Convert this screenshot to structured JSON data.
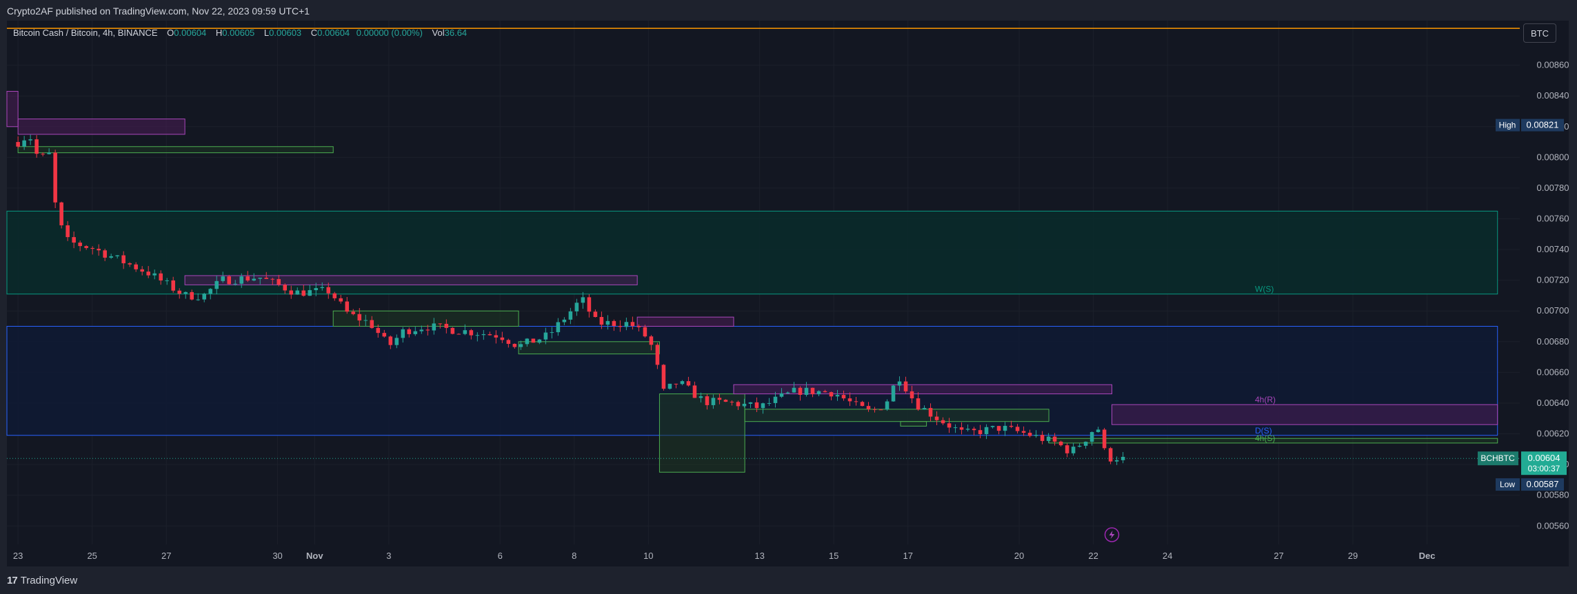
{
  "publish_text": "Crypto2AF published on TradingView.com, Nov 22, 2023 09:59 UTC+1",
  "legend": {
    "symbol": "Bitcoin Cash / Bitcoin, 4h, BINANCE",
    "open_label": "O",
    "open": "0.00604",
    "high_label": "H",
    "high": "0.00605",
    "low_label": "L",
    "low": "0.00603",
    "close_label": "C",
    "close": "0.00604",
    "change": "0.00000 (0.00%)",
    "vol_label": "Vol",
    "vol": "36.64"
  },
  "currency_button": "BTC",
  "footer_brand": "TradingView",
  "colors": {
    "background": "#131722",
    "up": "#26a69a",
    "down": "#f23645",
    "grid": "#1c202b",
    "purple": "#9c27b0",
    "green_zone": "#4caf50",
    "blue_line": "#2962ff",
    "teal_line": "#089981",
    "orange_line": "#ff9800",
    "last_price": "#22ab94"
  },
  "chart_data": {
    "type": "candlestick",
    "ylim": [
      0.00548,
      0.00889
    ],
    "yticks": [
      "0.00560",
      "0.00580",
      "0.00600",
      "0.00620",
      "0.00640",
      "0.00660",
      "0.00680",
      "0.00700",
      "0.00720",
      "0.00740",
      "0.00760",
      "0.00780",
      "0.00800",
      "0.00820",
      "0.00840",
      "0.00860"
    ],
    "x_ticks": [
      {
        "label": "23",
        "day": 0
      },
      {
        "label": "25",
        "day": 2
      },
      {
        "label": "27",
        "day": 4
      },
      {
        "label": "30",
        "day": 7
      },
      {
        "label": "Nov",
        "day": 8
      },
      {
        "label": "3",
        "day": 10
      },
      {
        "label": "6",
        "day": 13
      },
      {
        "label": "8",
        "day": 15
      },
      {
        "label": "10",
        "day": 17
      },
      {
        "label": "13",
        "day": 20
      },
      {
        "label": "15",
        "day": 22
      },
      {
        "label": "17",
        "day": 24
      },
      {
        "label": "20",
        "day": 27
      },
      {
        "label": "22",
        "day": 29
      },
      {
        "label": "24",
        "day": 31
      },
      {
        "label": "27",
        "day": 34
      },
      {
        "label": "29",
        "day": 36
      },
      {
        "label": "Dec",
        "day": 38
      }
    ],
    "x_range_days": [
      -0.3,
      40.5
    ],
    "high_marker": {
      "label": "High",
      "value": "0.00821"
    },
    "low_marker": {
      "label": "Low",
      "value": "0.00587"
    },
    "last_price": {
      "symbol": "BCHBTC",
      "value": "0.00604",
      "countdown": "03:00:37"
    },
    "zones": [
      {
        "kind": "teal",
        "from": 0.00711,
        "to": 0.00765,
        "x0": -0.3,
        "x1": 39.9
      },
      {
        "kind": "blue",
        "from": 0.00619,
        "to": 0.0069,
        "x0": -0.3,
        "x1": 39.9
      },
      {
        "kind": "purple",
        "from": 0.00815,
        "to": 0.00825,
        "x0": 0.0,
        "x1": 4.5
      },
      {
        "kind": "purple",
        "from": 0.0082,
        "to": 0.00843,
        "x0": -0.3,
        "x1": 0.0
      },
      {
        "kind": "green",
        "from": 0.00803,
        "to": 0.00807,
        "x0": 0.0,
        "x1": 8.5
      },
      {
        "kind": "purple",
        "from": 0.00717,
        "to": 0.00723,
        "x0": 4.5,
        "x1": 16.7
      },
      {
        "kind": "green",
        "from": 0.0069,
        "to": 0.007,
        "x0": 8.5,
        "x1": 13.5
      },
      {
        "kind": "purple",
        "from": 0.0069,
        "to": 0.00696,
        "x0": 16.7,
        "x1": 19.3
      },
      {
        "kind": "green",
        "from": 0.00672,
        "to": 0.0068,
        "x0": 13.5,
        "x1": 17.3
      },
      {
        "kind": "green",
        "from": 0.00595,
        "to": 0.00646,
        "x0": 17.3,
        "x1": 19.6
      },
      {
        "kind": "purple",
        "from": 0.00646,
        "to": 0.00652,
        "x0": 19.3,
        "x1": 29.5
      },
      {
        "kind": "green",
        "from": 0.00628,
        "to": 0.00636,
        "x0": 19.6,
        "x1": 27.8
      },
      {
        "kind": "green",
        "from": 0.00625,
        "to": 0.00628,
        "x0": 23.8,
        "x1": 24.5
      },
      {
        "kind": "purple",
        "from": 0.00626,
        "to": 0.00639,
        "x0": 29.5,
        "x1": 39.9
      },
      {
        "kind": "green",
        "from": 0.00614,
        "to": 0.00617,
        "x0": 27.8,
        "x1": 39.9
      }
    ],
    "levels": [
      {
        "label": "W(S)",
        "value": 0.00711,
        "color": "#089981"
      },
      {
        "label": "4h(R)",
        "value": 0.00639,
        "color": "#ab47bc"
      },
      {
        "label": "D(S)",
        "value": 0.00619,
        "color": "#2962ff"
      },
      {
        "label": "4h(S)",
        "value": 0.00614,
        "color": "#4caf50"
      }
    ],
    "top_line": 0.00884,
    "anchors": [
      [
        0.0,
        0.0081
      ],
      [
        0.3,
        0.00815
      ],
      [
        0.55,
        0.00799
      ],
      [
        0.85,
        0.00802
      ],
      [
        1.05,
        0.0076
      ],
      [
        1.35,
        0.00745
      ],
      [
        2.0,
        0.00741
      ],
      [
        3.5,
        0.00725
      ],
      [
        4.5,
        0.0071
      ],
      [
        5.0,
        0.0071
      ],
      [
        5.5,
        0.0072
      ],
      [
        6.5,
        0.00722
      ],
      [
        7.5,
        0.00712
      ],
      [
        8.4,
        0.00713
      ],
      [
        8.9,
        0.00698
      ],
      [
        9.5,
        0.00692
      ],
      [
        10.0,
        0.00677
      ],
      [
        10.4,
        0.00687
      ],
      [
        11.0,
        0.0069
      ],
      [
        12.0,
        0.00687
      ],
      [
        13.0,
        0.00684
      ],
      [
        13.5,
        0.00677
      ],
      [
        14.3,
        0.00684
      ],
      [
        14.8,
        0.00697
      ],
      [
        15.2,
        0.00708
      ],
      [
        15.6,
        0.00692
      ],
      [
        16.5,
        0.00692
      ],
      [
        17.0,
        0.00682
      ],
      [
        17.2,
        0.0067
      ],
      [
        17.35,
        0.00646
      ],
      [
        17.8,
        0.00654
      ],
      [
        18.5,
        0.00641
      ],
      [
        19.3,
        0.0064
      ],
      [
        20.0,
        0.00637
      ],
      [
        20.6,
        0.00644
      ],
      [
        21.0,
        0.00648
      ],
      [
        22.0,
        0.00647
      ],
      [
        22.6,
        0.00638
      ],
      [
        23.0,
        0.00634
      ],
      [
        23.4,
        0.0064
      ],
      [
        23.75,
        0.00658
      ],
      [
        24.2,
        0.0064
      ],
      [
        24.8,
        0.0063
      ],
      [
        25.5,
        0.0062
      ],
      [
        26.5,
        0.00624
      ],
      [
        27.2,
        0.0062
      ],
      [
        28.0,
        0.00614
      ],
      [
        28.4,
        0.00608
      ],
      [
        28.8,
        0.00617
      ],
      [
        29.1,
        0.00626
      ],
      [
        29.35,
        0.00604
      ],
      [
        29.8,
        0.00605
      ]
    ],
    "bars": 179
  }
}
